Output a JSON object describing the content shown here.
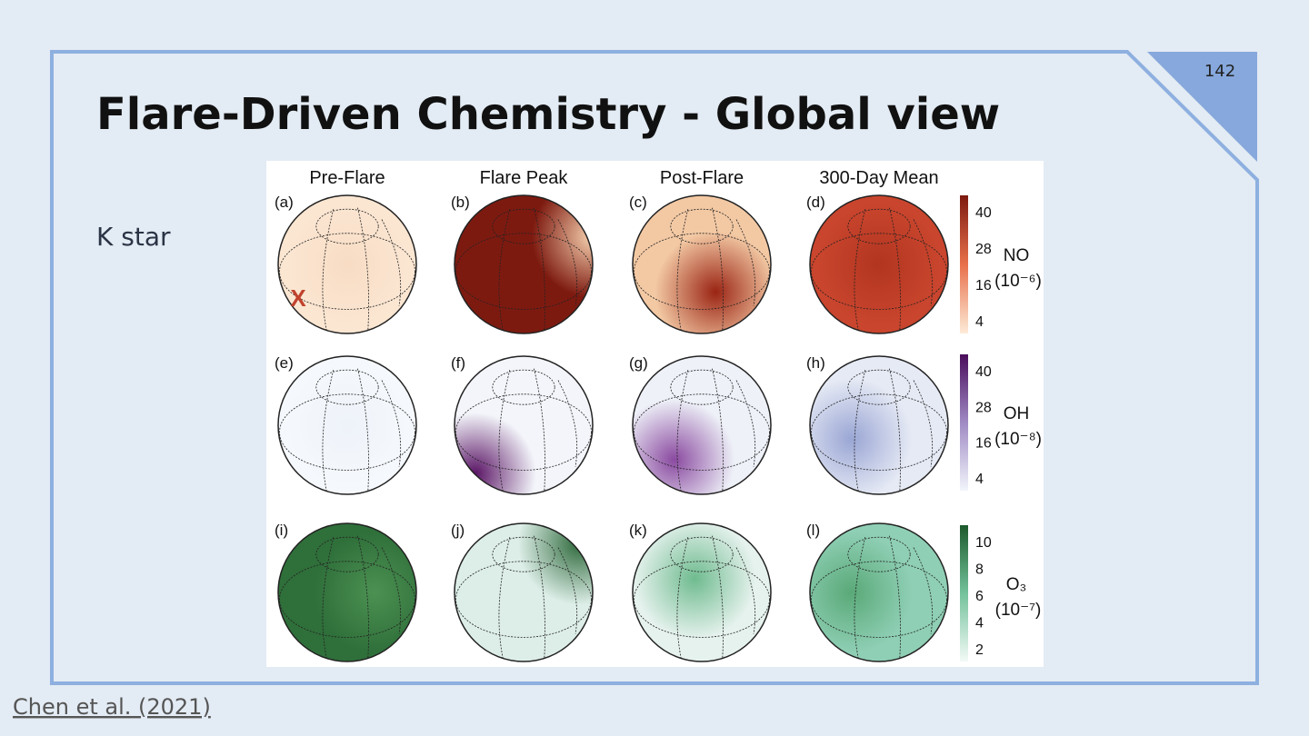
{
  "slide": {
    "title": "Flare-Driven Chemistry - Global view",
    "page_number": "142",
    "body": "K star",
    "citation": "Chen et al. (2021)"
  },
  "figure": {
    "columns": [
      "Pre-Flare",
      "Flare Peak",
      "Post-Flare",
      "300-Day Mean"
    ],
    "marker": "X",
    "rows": [
      {
        "panels": [
          "(a)",
          "(b)",
          "(c)",
          "(d)"
        ],
        "colorbar": {
          "ticks": [
            "40",
            "28",
            "16",
            "4"
          ],
          "species": "NO",
          "unit": "(10⁻⁶)"
        }
      },
      {
        "panels": [
          "(e)",
          "(f)",
          "(g)",
          "(h)"
        ],
        "colorbar": {
          "ticks": [
            "40",
            "28",
            "16",
            "4"
          ],
          "species": "OH",
          "unit": "(10⁻⁸)"
        }
      },
      {
        "panels": [
          "(i)",
          "(j)",
          "(k)",
          "(l)"
        ],
        "colorbar": {
          "ticks": [
            "10",
            "8",
            "6",
            "4",
            "2"
          ],
          "species": "O₃",
          "unit": "(10⁻⁷)"
        }
      }
    ]
  }
}
